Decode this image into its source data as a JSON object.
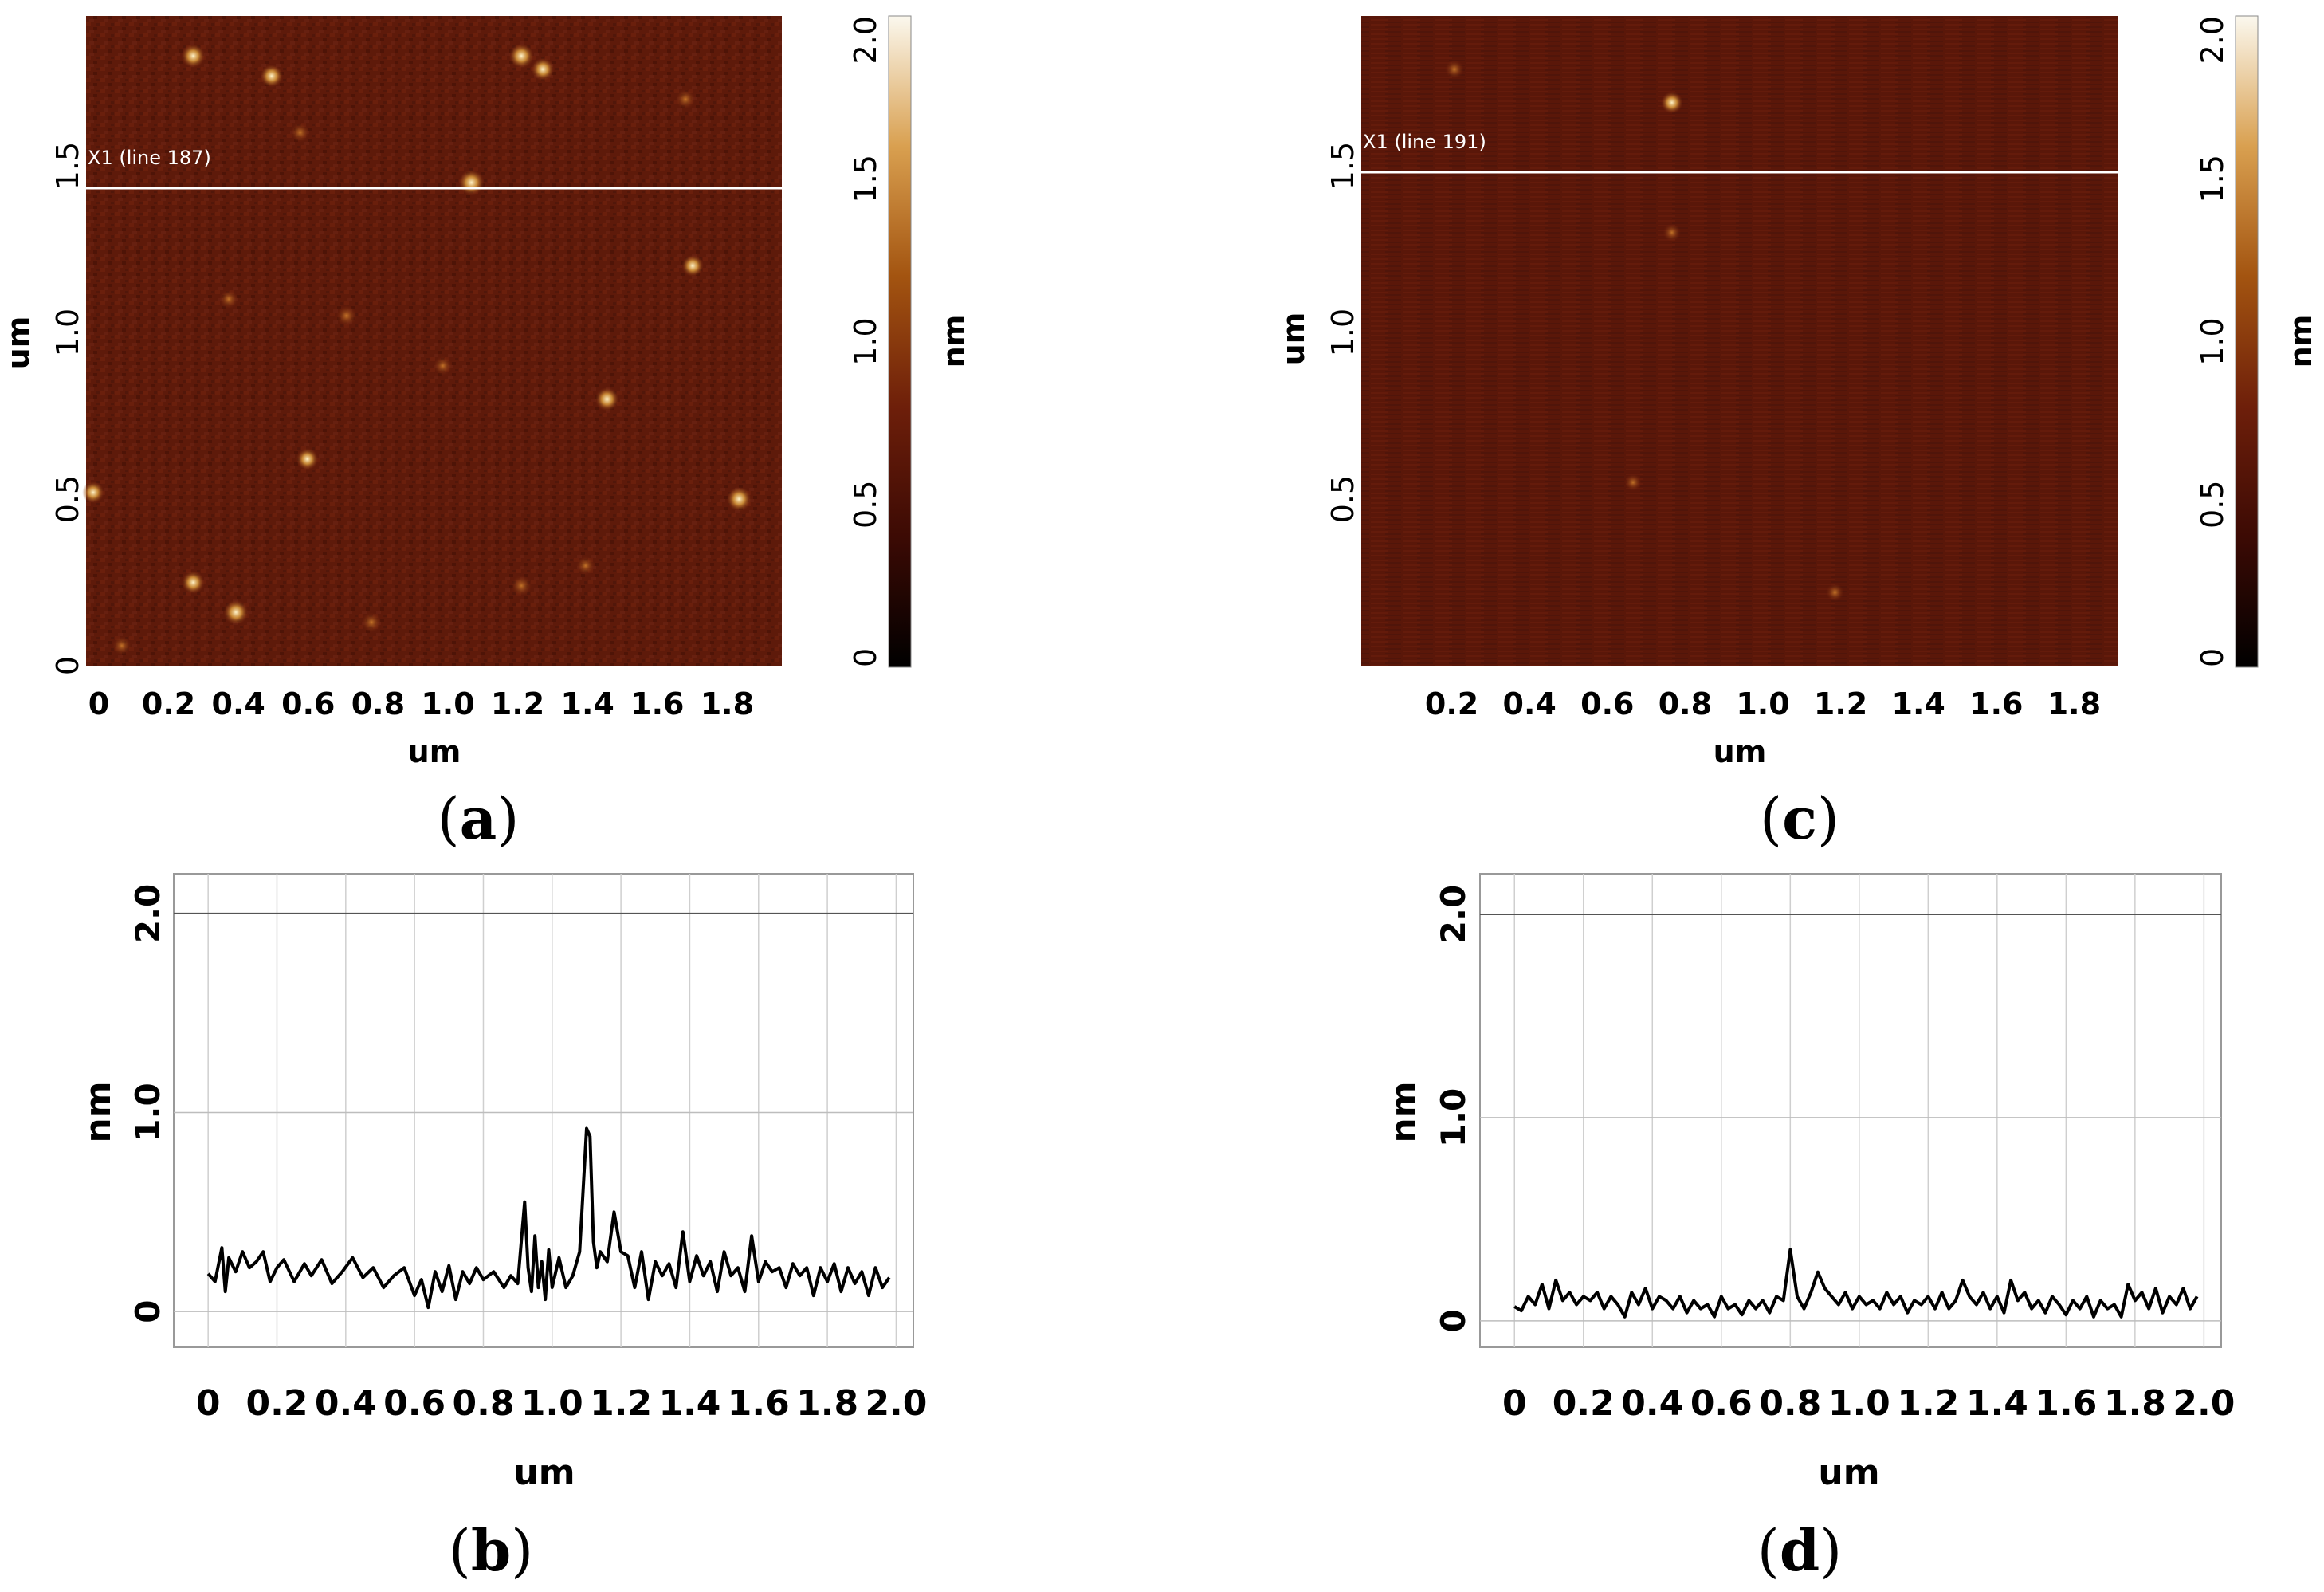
{
  "chart_data": [
    {
      "panel": "a",
      "type": "heatmap",
      "xlabel": "um",
      "ylabel": "um",
      "x_ticks": [
        "0",
        "0.2",
        "0.4",
        "0.6",
        "0.8",
        "1.0",
        "1.2",
        "1.4",
        "1.6",
        "1.8"
      ],
      "y_ticks": [
        "0",
        "0.5",
        "1.0",
        "1.5"
      ],
      "xlim": [
        0,
        1.95
      ],
      "ylim": [
        0,
        1.95
      ],
      "scan_line_label": "X1 (line 187)",
      "scan_line_y": 1.44,
      "colorbar": {
        "label": "nm",
        "ticks": [
          "0",
          "0.5",
          "1.0",
          "1.5",
          "2.0"
        ],
        "range": [
          0,
          2.0
        ],
        "colors": [
          "#000000",
          "#3c0a04",
          "#6e1f0a",
          "#a35410",
          "#d9a050",
          "#fbf8ee"
        ]
      },
      "features": [
        {
          "x": 0.3,
          "y": 1.83,
          "h": 1.5
        },
        {
          "x": 0.52,
          "y": 1.77,
          "h": 1.4
        },
        {
          "x": 1.22,
          "y": 1.83,
          "h": 1.6
        },
        {
          "x": 1.28,
          "y": 1.79,
          "h": 1.4
        },
        {
          "x": 1.08,
          "y": 1.45,
          "h": 1.7
        },
        {
          "x": 1.68,
          "y": 1.7,
          "h": 1.1
        },
        {
          "x": 1.7,
          "y": 1.2,
          "h": 1.3
        },
        {
          "x": 0.73,
          "y": 1.05,
          "h": 1.2
        },
        {
          "x": 1.46,
          "y": 0.8,
          "h": 1.5
        },
        {
          "x": 0.62,
          "y": 0.62,
          "h": 1.3
        },
        {
          "x": 1.83,
          "y": 0.5,
          "h": 1.6
        },
        {
          "x": 0.02,
          "y": 0.52,
          "h": 1.3
        },
        {
          "x": 0.3,
          "y": 0.25,
          "h": 1.4
        },
        {
          "x": 0.42,
          "y": 0.16,
          "h": 1.6
        },
        {
          "x": 1.22,
          "y": 0.24,
          "h": 1.2
        },
        {
          "x": 0.8,
          "y": 0.13,
          "h": 1.1
        },
        {
          "x": 1.0,
          "y": 0.9,
          "h": 1.0
        },
        {
          "x": 0.1,
          "y": 0.06,
          "h": 1.0
        },
        {
          "x": 1.4,
          "y": 0.3,
          "h": 1.0
        },
        {
          "x": 0.6,
          "y": 1.6,
          "h": 1.0
        },
        {
          "x": 0.4,
          "y": 1.1,
          "h": 1.0
        }
      ]
    },
    {
      "panel": "b",
      "type": "line",
      "xlabel": "um",
      "ylabel": "nm",
      "x_ticks": [
        "0",
        "0.2",
        "0.4",
        "0.6",
        "0.8",
        "1.0",
        "1.2",
        "1.4",
        "1.6",
        "1.8",
        "2.0"
      ],
      "y_ticks": [
        "0",
        "1.0",
        "2.0"
      ],
      "xlim": [
        -0.1,
        2.05
      ],
      "ylim": [
        -0.18,
        2.2
      ],
      "series": [
        {
          "name": "X1 (line 187)",
          "x": [
            0,
            0.02,
            0.04,
            0.05,
            0.06,
            0.08,
            0.1,
            0.12,
            0.14,
            0.16,
            0.18,
            0.2,
            0.22,
            0.25,
            0.28,
            0.3,
            0.33,
            0.36,
            0.39,
            0.42,
            0.45,
            0.48,
            0.51,
            0.54,
            0.57,
            0.6,
            0.62,
            0.64,
            0.66,
            0.68,
            0.7,
            0.72,
            0.74,
            0.76,
            0.78,
            0.8,
            0.83,
            0.86,
            0.88,
            0.9,
            0.92,
            0.93,
            0.94,
            0.95,
            0.96,
            0.97,
            0.98,
            0.99,
            1.0,
            1.02,
            1.04,
            1.06,
            1.08,
            1.1,
            1.11,
            1.12,
            1.13,
            1.14,
            1.16,
            1.18,
            1.2,
            1.22,
            1.24,
            1.26,
            1.28,
            1.3,
            1.32,
            1.34,
            1.36,
            1.38,
            1.4,
            1.42,
            1.44,
            1.46,
            1.48,
            1.5,
            1.52,
            1.54,
            1.56,
            1.58,
            1.6,
            1.62,
            1.64,
            1.66,
            1.68,
            1.7,
            1.72,
            1.74,
            1.76,
            1.78,
            1.8,
            1.82,
            1.84,
            1.86,
            1.88,
            1.9,
            1.92,
            1.94,
            1.96,
            1.98
          ],
          "values": [
            0.19,
            0.15,
            0.32,
            0.1,
            0.27,
            0.2,
            0.3,
            0.22,
            0.25,
            0.3,
            0.15,
            0.22,
            0.26,
            0.15,
            0.24,
            0.18,
            0.26,
            0.14,
            0.2,
            0.27,
            0.17,
            0.22,
            0.12,
            0.18,
            0.22,
            0.08,
            0.16,
            0.02,
            0.2,
            0.1,
            0.23,
            0.06,
            0.2,
            0.14,
            0.22,
            0.16,
            0.2,
            0.12,
            0.18,
            0.14,
            0.55,
            0.22,
            0.1,
            0.38,
            0.12,
            0.25,
            0.06,
            0.31,
            0.12,
            0.27,
            0.12,
            0.18,
            0.3,
            0.92,
            0.88,
            0.35,
            0.22,
            0.3,
            0.25,
            0.5,
            0.3,
            0.28,
            0.12,
            0.3,
            0.06,
            0.25,
            0.18,
            0.24,
            0.12,
            0.4,
            0.15,
            0.28,
            0.18,
            0.25,
            0.1,
            0.3,
            0.18,
            0.22,
            0.1,
            0.38,
            0.15,
            0.25,
            0.2,
            0.22,
            0.12,
            0.24,
            0.18,
            0.22,
            0.08,
            0.22,
            0.15,
            0.24,
            0.1,
            0.22,
            0.14,
            0.2,
            0.08,
            0.22,
            0.12,
            0.17
          ]
        }
      ]
    },
    {
      "panel": "c",
      "type": "heatmap",
      "xlabel": "um",
      "ylabel": "um",
      "x_ticks": [
        "0.2",
        "0.4",
        "0.6",
        "0.8",
        "1.0",
        "1.2",
        "1.4",
        "1.6",
        "1.8"
      ],
      "y_ticks": [
        "0.5",
        "1.0",
        "1.5"
      ],
      "xlim": [
        0,
        1.95
      ],
      "ylim": [
        0,
        1.95
      ],
      "scan_line_label": "X1 (line 191)",
      "scan_line_y": 1.49,
      "colorbar": {
        "label": "nm",
        "ticks": [
          "0",
          "0.5",
          "1.0",
          "1.5",
          "2.0"
        ],
        "range": [
          0,
          2.0
        ],
        "colors": [
          "#000000",
          "#3c0a04",
          "#6e1f0a",
          "#a35410",
          "#d9a050",
          "#fbf8ee"
        ]
      },
      "features": [
        {
          "x": 0.8,
          "y": 1.69,
          "h": 1.3
        },
        {
          "x": 0.24,
          "y": 1.79,
          "h": 1.0
        },
        {
          "x": 0.8,
          "y": 1.3,
          "h": 0.9
        },
        {
          "x": 1.22,
          "y": 0.22,
          "h": 0.9
        },
        {
          "x": 0.7,
          "y": 0.55,
          "h": 0.8
        }
      ]
    },
    {
      "panel": "d",
      "type": "line",
      "xlabel": "um",
      "ylabel": "nm",
      "x_ticks": [
        "0",
        "0.2",
        "0.4",
        "0.6",
        "0.8",
        "1.0",
        "1.2",
        "1.4",
        "1.6",
        "1.8",
        "2.0"
      ],
      "y_ticks": [
        "0",
        "1.0",
        "2.0"
      ],
      "xlim": [
        -0.1,
        2.05
      ],
      "ylim": [
        -0.13,
        2.2
      ],
      "series": [
        {
          "name": "X1 (line 191)",
          "x": [
            0,
            0.02,
            0.04,
            0.06,
            0.08,
            0.1,
            0.12,
            0.14,
            0.16,
            0.18,
            0.2,
            0.22,
            0.24,
            0.26,
            0.28,
            0.3,
            0.32,
            0.34,
            0.36,
            0.38,
            0.4,
            0.42,
            0.44,
            0.46,
            0.48,
            0.5,
            0.52,
            0.54,
            0.56,
            0.58,
            0.6,
            0.62,
            0.64,
            0.66,
            0.68,
            0.7,
            0.72,
            0.74,
            0.76,
            0.78,
            0.8,
            0.82,
            0.84,
            0.86,
            0.88,
            0.9,
            0.92,
            0.94,
            0.96,
            0.98,
            1.0,
            1.02,
            1.04,
            1.06,
            1.08,
            1.1,
            1.12,
            1.14,
            1.16,
            1.18,
            1.2,
            1.22,
            1.24,
            1.26,
            1.28,
            1.3,
            1.32,
            1.34,
            1.36,
            1.38,
            1.4,
            1.42,
            1.44,
            1.46,
            1.48,
            1.5,
            1.52,
            1.54,
            1.56,
            1.58,
            1.6,
            1.62,
            1.64,
            1.66,
            1.68,
            1.7,
            1.72,
            1.74,
            1.76,
            1.78,
            1.8,
            1.82,
            1.84,
            1.86,
            1.88,
            1.9,
            1.92,
            1.94,
            1.96,
            1.98
          ],
          "values": [
            0.07,
            0.05,
            0.12,
            0.08,
            0.18,
            0.06,
            0.2,
            0.1,
            0.14,
            0.08,
            0.12,
            0.1,
            0.14,
            0.06,
            0.12,
            0.08,
            0.02,
            0.14,
            0.08,
            0.16,
            0.06,
            0.12,
            0.1,
            0.06,
            0.12,
            0.04,
            0.1,
            0.06,
            0.08,
            0.02,
            0.12,
            0.06,
            0.08,
            0.03,
            0.1,
            0.06,
            0.1,
            0.04,
            0.12,
            0.1,
            0.35,
            0.12,
            0.06,
            0.14,
            0.24,
            0.16,
            0.12,
            0.08,
            0.14,
            0.06,
            0.12,
            0.08,
            0.1,
            0.06,
            0.14,
            0.08,
            0.12,
            0.04,
            0.1,
            0.08,
            0.12,
            0.06,
            0.14,
            0.06,
            0.1,
            0.2,
            0.12,
            0.08,
            0.14,
            0.06,
            0.12,
            0.04,
            0.2,
            0.1,
            0.14,
            0.06,
            0.1,
            0.04,
            0.12,
            0.08,
            0.03,
            0.1,
            0.06,
            0.12,
            0.02,
            0.1,
            0.06,
            0.08,
            0.02,
            0.18,
            0.1,
            0.14,
            0.06,
            0.16,
            0.04,
            0.12,
            0.08,
            0.16,
            0.06,
            0.12
          ]
        }
      ]
    }
  ],
  "captions": {
    "a": "a",
    "b": "b",
    "c": "c",
    "d": "d"
  }
}
